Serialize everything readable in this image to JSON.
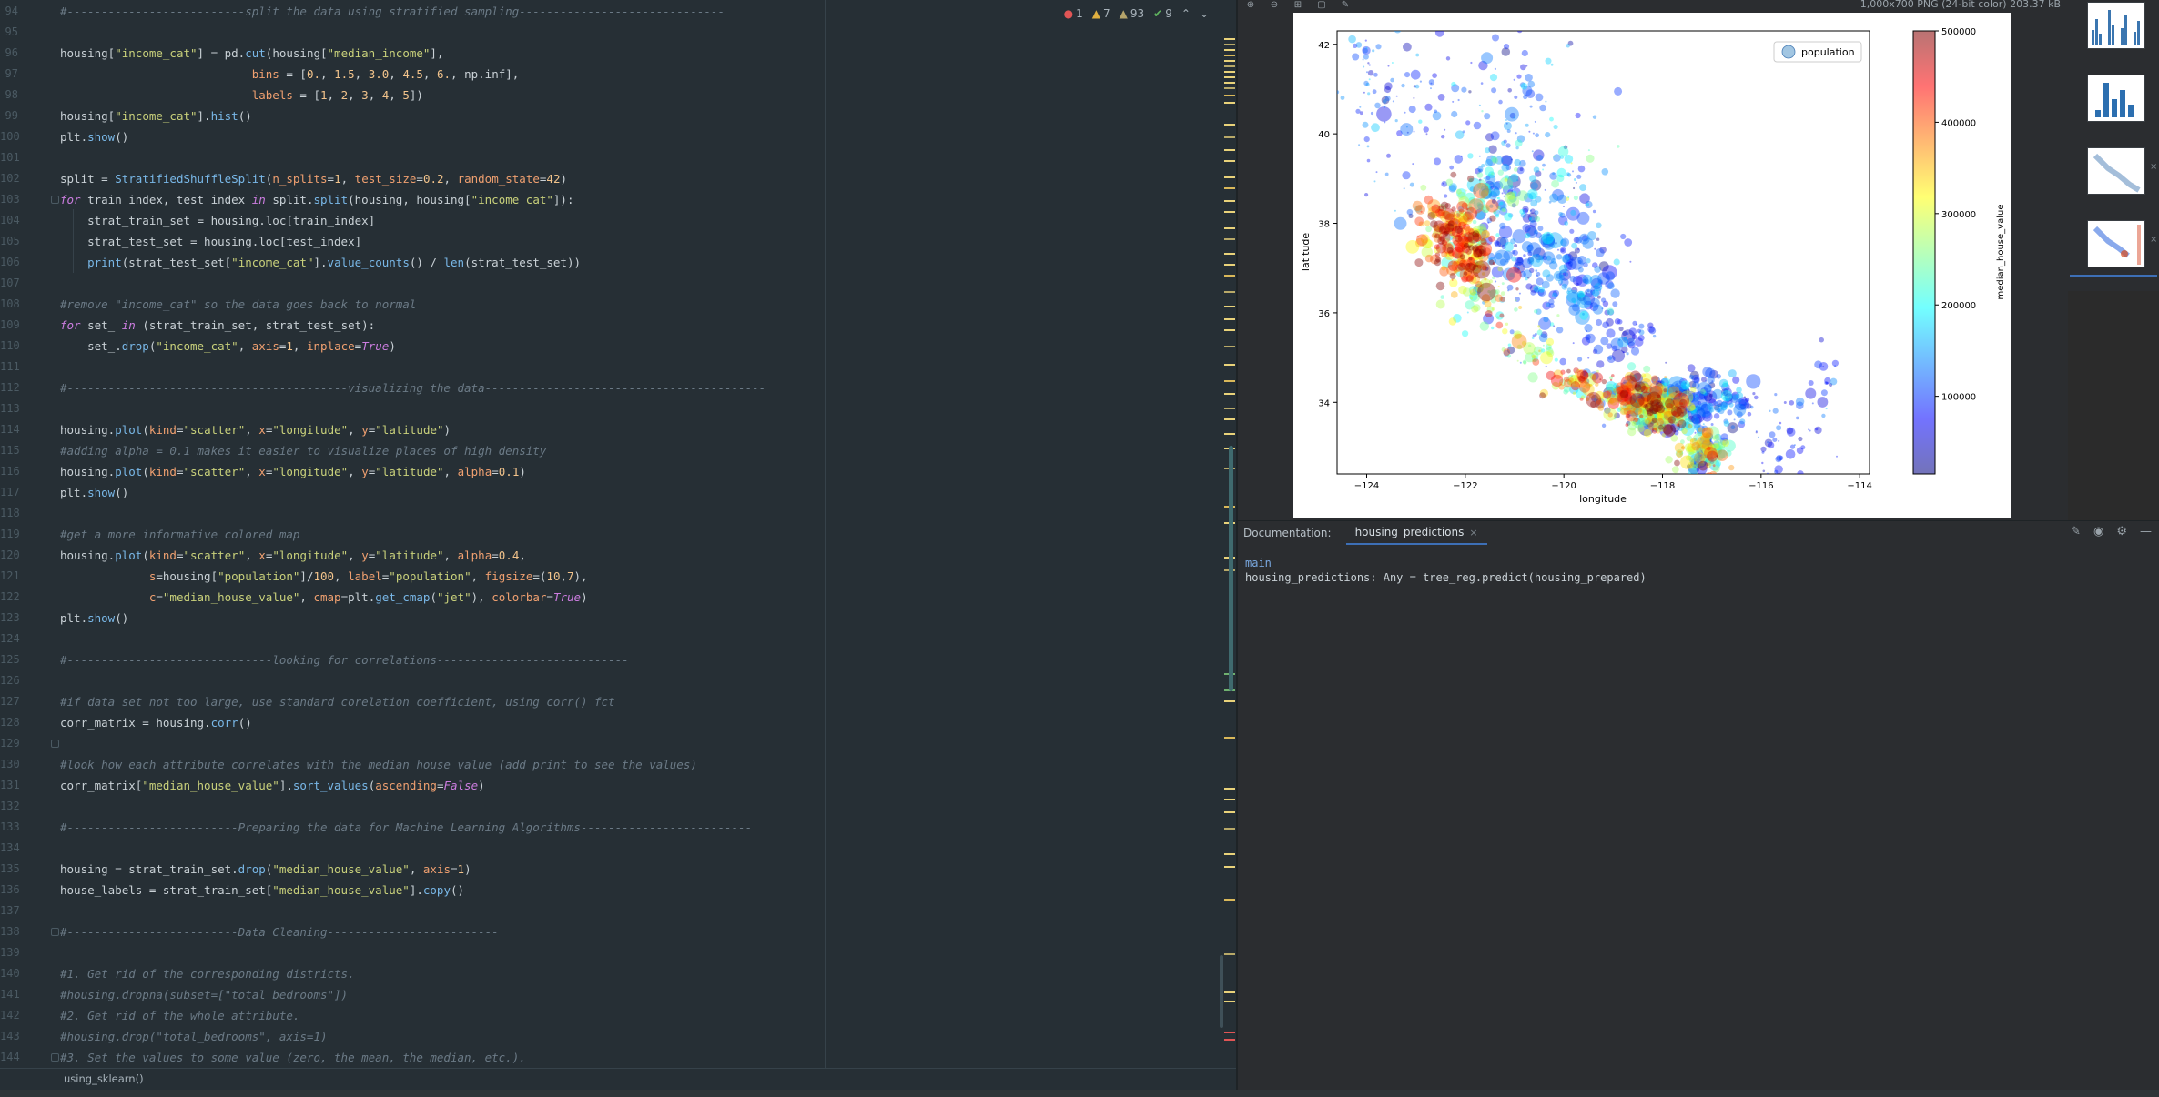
{
  "editor": {
    "lines": [
      {
        "n": "94",
        "segs": [
          [
            "cm",
            "#--------------------------split the data using stratified sampling------------------------------"
          ]
        ]
      },
      {
        "n": "95",
        "segs": []
      },
      {
        "n": "96",
        "segs": [
          [
            "",
            "housing["
          ],
          [
            "st",
            "\"income_cat\""
          ],
          [
            "",
            "] = pd."
          ],
          [
            "fn",
            "cut"
          ],
          [
            "",
            "(housing["
          ],
          [
            "st",
            "\"median_income\""
          ],
          [
            "",
            "],"
          ]
        ]
      },
      {
        "n": "97",
        "segs": [
          [
            "",
            "                            "
          ],
          [
            "pm",
            "bins"
          ],
          [
            "",
            " = ["
          ],
          [
            "nm",
            "0."
          ],
          [
            "",
            ", "
          ],
          [
            "nm",
            "1.5"
          ],
          [
            "",
            ", "
          ],
          [
            "nm",
            "3.0"
          ],
          [
            "",
            ", "
          ],
          [
            "nm",
            "4.5"
          ],
          [
            "",
            ", "
          ],
          [
            "nm",
            "6."
          ],
          [
            "",
            ", np.inf],"
          ]
        ]
      },
      {
        "n": "98",
        "segs": [
          [
            "",
            "                            "
          ],
          [
            "pm",
            "labels"
          ],
          [
            "",
            " = ["
          ],
          [
            "nm",
            "1"
          ],
          [
            "",
            ", "
          ],
          [
            "nm",
            "2"
          ],
          [
            "",
            ", "
          ],
          [
            "nm",
            "3"
          ],
          [
            "",
            ", "
          ],
          [
            "nm",
            "4"
          ],
          [
            "",
            ", "
          ],
          [
            "nm",
            "5"
          ],
          [
            "",
            "])"
          ]
        ]
      },
      {
        "n": "99",
        "segs": [
          [
            "",
            "housing["
          ],
          [
            "st",
            "\"income_cat\""
          ],
          [
            "",
            "]."
          ],
          [
            "fn",
            "hist"
          ],
          [
            "",
            "()"
          ]
        ]
      },
      {
        "n": "100",
        "segs": [
          [
            "",
            "plt."
          ],
          [
            "fn",
            "show"
          ],
          [
            "",
            "()"
          ]
        ]
      },
      {
        "n": "101",
        "segs": []
      },
      {
        "n": "102",
        "segs": [
          [
            "",
            "split = "
          ],
          [
            "cls",
            "StratifiedShuffleSplit"
          ],
          [
            "",
            "("
          ],
          [
            "pm",
            "n_splits"
          ],
          [
            "",
            "="
          ],
          [
            "nm",
            "1"
          ],
          [
            "",
            ", "
          ],
          [
            "pm",
            "test_size"
          ],
          [
            "",
            "="
          ],
          [
            "nm",
            "0.2"
          ],
          [
            "",
            ", "
          ],
          [
            "pm",
            "random_state"
          ],
          [
            "",
            "="
          ],
          [
            "nm",
            "42"
          ],
          [
            "",
            ")"
          ]
        ]
      },
      {
        "n": "103",
        "segs": [
          [
            "kw",
            "for"
          ],
          [
            "",
            " train_index, test_index "
          ],
          [
            "kw",
            "in"
          ],
          [
            "",
            " split."
          ],
          [
            "fn",
            "split"
          ],
          [
            "",
            "(housing, housing["
          ],
          [
            "st",
            "\"income_cat\""
          ],
          [
            "",
            "]):"
          ]
        ]
      },
      {
        "n": "104",
        "segs": [
          [
            "",
            "    strat_train_set = housing.loc[train_index]"
          ]
        ]
      },
      {
        "n": "105",
        "segs": [
          [
            "",
            "    strat_test_set = housing.loc[test_index]"
          ]
        ]
      },
      {
        "n": "106",
        "segs": [
          [
            "",
            "    "
          ],
          [
            "fn",
            "print"
          ],
          [
            "",
            "(strat_test_set["
          ],
          [
            "st",
            "\"income_cat\""
          ],
          [
            "",
            "]."
          ],
          [
            "fn",
            "value_counts"
          ],
          [
            "",
            "() / "
          ],
          [
            "fn",
            "len"
          ],
          [
            "",
            "(strat_test_set))"
          ]
        ]
      },
      {
        "n": "107",
        "segs": []
      },
      {
        "n": "108",
        "segs": [
          [
            "cm",
            "#remove \"income_cat\" so the data goes back to normal"
          ]
        ]
      },
      {
        "n": "109",
        "segs": [
          [
            "kw",
            "for"
          ],
          [
            "",
            " set_ "
          ],
          [
            "kw",
            "in"
          ],
          [
            "",
            " (strat_train_set, strat_test_set):"
          ]
        ]
      },
      {
        "n": "110",
        "segs": [
          [
            "",
            "    set_."
          ],
          [
            "fn",
            "drop"
          ],
          [
            "",
            "("
          ],
          [
            "st",
            "\"income_cat\""
          ],
          [
            "",
            ", "
          ],
          [
            "pm",
            "axis"
          ],
          [
            "",
            "="
          ],
          [
            "nm",
            "1"
          ],
          [
            "",
            ", "
          ],
          [
            "pm",
            "inplace"
          ],
          [
            "",
            "="
          ],
          [
            "kw",
            "True"
          ],
          [
            "",
            ")"
          ]
        ]
      },
      {
        "n": "111",
        "segs": []
      },
      {
        "n": "112",
        "segs": [
          [
            "cm",
            "#-----------------------------------------visualizing the data-----------------------------------------"
          ]
        ]
      },
      {
        "n": "113",
        "segs": []
      },
      {
        "n": "114",
        "segs": [
          [
            "",
            "housing."
          ],
          [
            "fn",
            "plot"
          ],
          [
            "",
            "("
          ],
          [
            "pm",
            "kind"
          ],
          [
            "",
            "="
          ],
          [
            "st",
            "\"scatter\""
          ],
          [
            "",
            ", "
          ],
          [
            "pm",
            "x"
          ],
          [
            "",
            "="
          ],
          [
            "st",
            "\"longitude\""
          ],
          [
            "",
            ", "
          ],
          [
            "pm",
            "y"
          ],
          [
            "",
            "="
          ],
          [
            "st",
            "\"latitude\""
          ],
          [
            "",
            ")"
          ]
        ]
      },
      {
        "n": "115",
        "segs": [
          [
            "cm",
            "#adding alpha = 0.1 makes it easier to visualize places of high density"
          ]
        ]
      },
      {
        "n": "116",
        "segs": [
          [
            "",
            "housing."
          ],
          [
            "fn",
            "plot"
          ],
          [
            "",
            "("
          ],
          [
            "pm",
            "kind"
          ],
          [
            "",
            "="
          ],
          [
            "st",
            "\"scatter\""
          ],
          [
            "",
            ", "
          ],
          [
            "pm",
            "x"
          ],
          [
            "",
            "="
          ],
          [
            "st",
            "\"longitude\""
          ],
          [
            "",
            ", "
          ],
          [
            "pm",
            "y"
          ],
          [
            "",
            "="
          ],
          [
            "st",
            "\"latitude\""
          ],
          [
            "",
            ", "
          ],
          [
            "pm",
            "alpha"
          ],
          [
            "",
            "="
          ],
          [
            "nm",
            "0.1"
          ],
          [
            "",
            ")"
          ]
        ]
      },
      {
        "n": "117",
        "segs": [
          [
            "",
            "plt."
          ],
          [
            "fn",
            "show"
          ],
          [
            "",
            "()"
          ]
        ]
      },
      {
        "n": "118",
        "segs": []
      },
      {
        "n": "119",
        "segs": [
          [
            "cm",
            "#get a more informative colored map"
          ]
        ]
      },
      {
        "n": "120",
        "segs": [
          [
            "",
            "housing."
          ],
          [
            "fn",
            "plot"
          ],
          [
            "",
            "("
          ],
          [
            "pm",
            "kind"
          ],
          [
            "",
            "="
          ],
          [
            "st",
            "\"scatter\""
          ],
          [
            "",
            ", "
          ],
          [
            "pm",
            "x"
          ],
          [
            "",
            "="
          ],
          [
            "st",
            "\"longitude\""
          ],
          [
            "",
            ", "
          ],
          [
            "pm",
            "y"
          ],
          [
            "",
            "="
          ],
          [
            "st",
            "\"latitude\""
          ],
          [
            "",
            ", "
          ],
          [
            "pm",
            "alpha"
          ],
          [
            "",
            "="
          ],
          [
            "nm",
            "0.4"
          ],
          [
            "",
            ","
          ]
        ]
      },
      {
        "n": "121",
        "segs": [
          [
            "",
            "             "
          ],
          [
            "pm",
            "s"
          ],
          [
            "",
            "=housing["
          ],
          [
            "st",
            "\"population\""
          ],
          [
            "",
            "]/"
          ],
          [
            "nm",
            "100"
          ],
          [
            "",
            ", "
          ],
          [
            "pm",
            "label"
          ],
          [
            "",
            "="
          ],
          [
            "st",
            "\"population\""
          ],
          [
            "",
            ", "
          ],
          [
            "pm",
            "figsize"
          ],
          [
            "",
            "=("
          ],
          [
            "nm",
            "10"
          ],
          [
            "",
            ","
          ],
          [
            "nm",
            "7"
          ],
          [
            "",
            "),"
          ]
        ]
      },
      {
        "n": "122",
        "segs": [
          [
            "",
            "             "
          ],
          [
            "pm",
            "c"
          ],
          [
            "",
            "="
          ],
          [
            "st",
            "\"median_house_value\""
          ],
          [
            "",
            ", "
          ],
          [
            "pm",
            "cmap"
          ],
          [
            "",
            "=plt."
          ],
          [
            "fn",
            "get_cmap"
          ],
          [
            "",
            "("
          ],
          [
            "st",
            "\"jet\""
          ],
          [
            "",
            "), "
          ],
          [
            "pm",
            "colorbar"
          ],
          [
            "",
            "="
          ],
          [
            "kw",
            "True"
          ],
          [
            "",
            ")"
          ]
        ]
      },
      {
        "n": "123",
        "segs": [
          [
            "",
            "plt."
          ],
          [
            "fn",
            "show"
          ],
          [
            "",
            "()"
          ]
        ]
      },
      {
        "n": "124",
        "segs": []
      },
      {
        "n": "125",
        "segs": [
          [
            "cm",
            "#------------------------------looking for correlations----------------------------"
          ]
        ]
      },
      {
        "n": "126",
        "segs": []
      },
      {
        "n": "127",
        "segs": [
          [
            "cm",
            "#if data set not too large, use standard corelation coefficient, using corr() fct"
          ]
        ]
      },
      {
        "n": "128",
        "segs": [
          [
            "",
            "corr_matrix = housing."
          ],
          [
            "fn",
            "corr"
          ],
          [
            "",
            "()"
          ]
        ]
      },
      {
        "n": "129",
        "segs": []
      },
      {
        "n": "130",
        "segs": [
          [
            "cm",
            "#look how each attribute correlates with the median house value (add print to see the values)"
          ]
        ]
      },
      {
        "n": "131",
        "segs": [
          [
            "",
            "corr_matrix["
          ],
          [
            "st",
            "\"median_house_value\""
          ],
          [
            "",
            "]."
          ],
          [
            "fn",
            "sort_values"
          ],
          [
            "",
            "("
          ],
          [
            "pm",
            "ascending"
          ],
          [
            "",
            "="
          ],
          [
            "kw",
            "False"
          ],
          [
            "",
            ")"
          ]
        ]
      },
      {
        "n": "132",
        "segs": []
      },
      {
        "n": "133",
        "segs": [
          [
            "cm",
            "#-------------------------Preparing the data for Machine Learning Algorithms-------------------------"
          ]
        ]
      },
      {
        "n": "134",
        "segs": []
      },
      {
        "n": "135",
        "segs": [
          [
            "",
            "housing = strat_train_set."
          ],
          [
            "fn",
            "drop"
          ],
          [
            "",
            "("
          ],
          [
            "st",
            "\"median_house_value\""
          ],
          [
            "",
            ", "
          ],
          [
            "pm",
            "axis"
          ],
          [
            "",
            "="
          ],
          [
            "nm",
            "1"
          ],
          [
            "",
            ")"
          ]
        ]
      },
      {
        "n": "136",
        "segs": [
          [
            "",
            "house_labels = strat_train_set["
          ],
          [
            "st",
            "\"median_house_value\""
          ],
          [
            "",
            "]."
          ],
          [
            "fn",
            "copy"
          ],
          [
            "",
            "()"
          ]
        ]
      },
      {
        "n": "137",
        "segs": []
      },
      {
        "n": "138",
        "segs": [
          [
            "cm",
            "#-------------------------Data Cleaning-------------------------"
          ]
        ]
      },
      {
        "n": "139",
        "segs": []
      },
      {
        "n": "140",
        "segs": [
          [
            "cm",
            "#1. Get rid of the corresponding districts."
          ]
        ]
      },
      {
        "n": "141",
        "segs": [
          [
            "cm",
            "#housing.dropna(subset=[\"total_bedrooms\"])"
          ]
        ]
      },
      {
        "n": "142",
        "segs": [
          [
            "cm",
            "#2. Get rid of the whole attribute."
          ]
        ]
      },
      {
        "n": "143",
        "segs": [
          [
            "cm",
            "#housing.drop(\"total_bedrooms\", axis=1)"
          ]
        ]
      },
      {
        "n": "144",
        "segs": [
          [
            "cm",
            "#3. Set the values to some value (zero, the mean, the median, etc.)."
          ]
        ]
      }
    ],
    "inspections": {
      "errors": "1",
      "warnings": "7",
      "weak_warnings": "93",
      "ok": "9"
    },
    "breadcrumb": "using_sklearn()"
  },
  "viewer": {
    "info": "1,000x700 PNG (24-bit color) 203.37 kB",
    "toolbar_icons": [
      "zoom-in-icon",
      "zoom-out-icon",
      "actual-size-icon",
      "fit-icon",
      "color-picker-icon"
    ]
  },
  "chart_data": {
    "type": "scatter",
    "xlabel": "longitude",
    "ylabel": "latitude",
    "xlim": [
      -124.6,
      -113.8
    ],
    "ylim": [
      32.4,
      42.3
    ],
    "xticks": [
      "−124",
      "−122",
      "−120",
      "−118",
      "−116",
      "−114"
    ],
    "yticks": [
      "34",
      "36",
      "38",
      "40",
      "42"
    ],
    "legend": "population",
    "legend_position": "top-right",
    "colorbar_label": "median_house_value",
    "colorbar_ticks": [
      "100000",
      "200000",
      "300000",
      "400000",
      "500000"
    ],
    "colorbar_range": [
      15000,
      500001
    ],
    "colormap": "jet",
    "alpha": 0.4
  },
  "doc_panel": {
    "title": "Documentation:",
    "tab": "housing_predictions",
    "module": "main",
    "signature": "housing_predictions: Any = tree_reg.predict(housing_prepared)"
  }
}
